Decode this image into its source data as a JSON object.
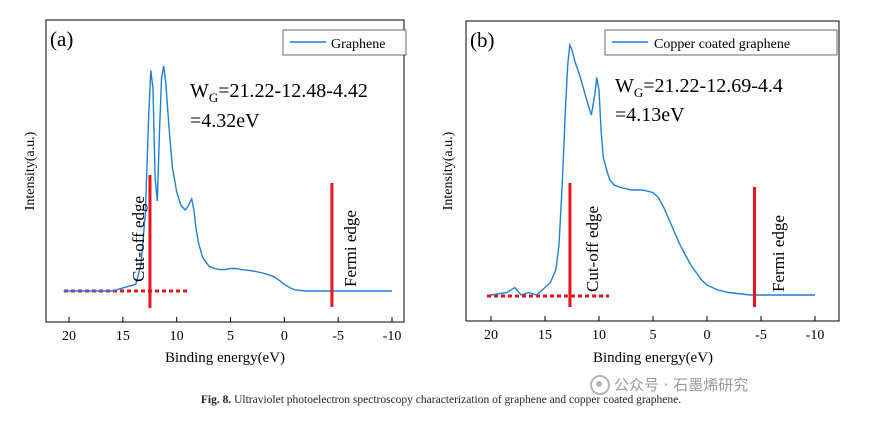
{
  "chart_data": [
    {
      "type": "line",
      "panel_label": "(a)",
      "xlabel": "Binding energy(eV)",
      "ylabel": "Intensity(a.u.)",
      "xlim": [
        22,
        -10
      ],
      "x_reversed": true,
      "xticks": [
        "20",
        "15",
        "10",
        "5",
        "0",
        "-5",
        "-10"
      ],
      "xtick_values": [
        20,
        15,
        10,
        5,
        0,
        -5,
        -10
      ],
      "series": [
        {
          "name": "Graphene",
          "color": "#1f7fd6",
          "x": [
            20.5,
            16,
            13.8,
            13.3,
            12.9,
            12.6,
            12.4,
            12.2,
            12.0,
            11.8,
            11.6,
            11.4,
            11.2,
            11.0,
            10.7,
            10.4,
            10.0,
            9.6,
            9.2,
            8.9,
            8.6,
            8.4,
            8.2,
            8.0,
            7.6,
            7.0,
            6.5,
            6.0,
            5.5,
            5.0,
            4.5,
            4.0,
            3.0,
            2.0,
            1.0,
            0.4,
            0.0,
            -0.5,
            -1.0,
            -2.0,
            -4.2,
            -6.0,
            -8.0,
            -10.0
          ],
          "y": [
            0.0,
            0.0,
            0.03,
            0.12,
            0.35,
            0.78,
            0.98,
            0.9,
            0.5,
            0.4,
            0.7,
            0.95,
            1.0,
            0.92,
            0.72,
            0.55,
            0.44,
            0.38,
            0.36,
            0.38,
            0.41,
            0.36,
            0.28,
            0.22,
            0.15,
            0.11,
            0.1,
            0.095,
            0.095,
            0.1,
            0.1,
            0.095,
            0.09,
            0.08,
            0.065,
            0.045,
            0.03,
            0.015,
            0.005,
            0.0,
            0.0,
            0.0,
            0.0,
            0.0
          ]
        }
      ],
      "annotations": {
        "work_function_line1": "W",
        "work_function_sub": "G",
        "work_function_expr": "=21.22-12.48-4.42",
        "work_function_result": "=4.32eV",
        "cutoff_label": "Cut-off edge",
        "fermi_label": "Fermi edge",
        "cutoff_x": 12.48,
        "fermi_x": -4.42,
        "marker_color": "#e8141d"
      }
    },
    {
      "type": "line",
      "panel_label": "(b)",
      "xlabel": "Binding energy(eV)",
      "ylabel": "Intensity(a.u.)",
      "xlim": [
        22,
        -10
      ],
      "x_reversed": true,
      "xticks": [
        "20",
        "15",
        "10",
        "5",
        "0",
        "-5",
        "-10"
      ],
      "xtick_values": [
        20,
        15,
        10,
        5,
        0,
        -5,
        -10
      ],
      "series": [
        {
          "name": "Copper coated graphene",
          "color": "#1f7fd6",
          "x": [
            20.0,
            18.5,
            17.8,
            17.2,
            16.5,
            15.8,
            15.0,
            14.5,
            14.0,
            13.7,
            13.4,
            13.1,
            12.9,
            12.7,
            12.5,
            12.2,
            11.8,
            11.4,
            11.0,
            10.7,
            10.4,
            10.2,
            10.0,
            9.8,
            9.6,
            9.3,
            9.0,
            8.6,
            8.0,
            7.0,
            6.0,
            5.0,
            4.5,
            4.0,
            3.5,
            3.0,
            2.5,
            2.0,
            1.5,
            1.0,
            0.5,
            0.0,
            -1.0,
            -2.0,
            -4.0,
            -6.0,
            -8.0,
            -10.0
          ],
          "y": [
            0.0,
            0.01,
            0.03,
            0.0,
            0.01,
            0.0,
            0.03,
            0.05,
            0.1,
            0.2,
            0.45,
            0.75,
            0.92,
            1.0,
            0.98,
            0.93,
            0.88,
            0.82,
            0.76,
            0.72,
            0.8,
            0.87,
            0.82,
            0.65,
            0.55,
            0.5,
            0.46,
            0.44,
            0.43,
            0.42,
            0.42,
            0.41,
            0.39,
            0.35,
            0.3,
            0.25,
            0.2,
            0.16,
            0.12,
            0.09,
            0.06,
            0.04,
            0.02,
            0.01,
            0.0,
            0.0,
            0.0,
            0.0
          ]
        }
      ],
      "annotations": {
        "work_function_line1": "W",
        "work_function_sub": "G",
        "work_function_expr": "=21.22-12.69-4.4",
        "work_function_result": "=4.13eV",
        "cutoff_label": "Cut-off edge",
        "fermi_label": "Fermi edge",
        "cutoff_x": 12.69,
        "fermi_x": -4.4,
        "marker_color": "#e8141d"
      }
    }
  ],
  "caption": {
    "label": "Fig. 8.",
    "text": " Ultraviolet photoelectron spectroscopy characterization of graphene and copper coated graphene."
  },
  "watermark": {
    "icon": "wechat-icon",
    "text": "公众号 · 石墨烯研究"
  }
}
